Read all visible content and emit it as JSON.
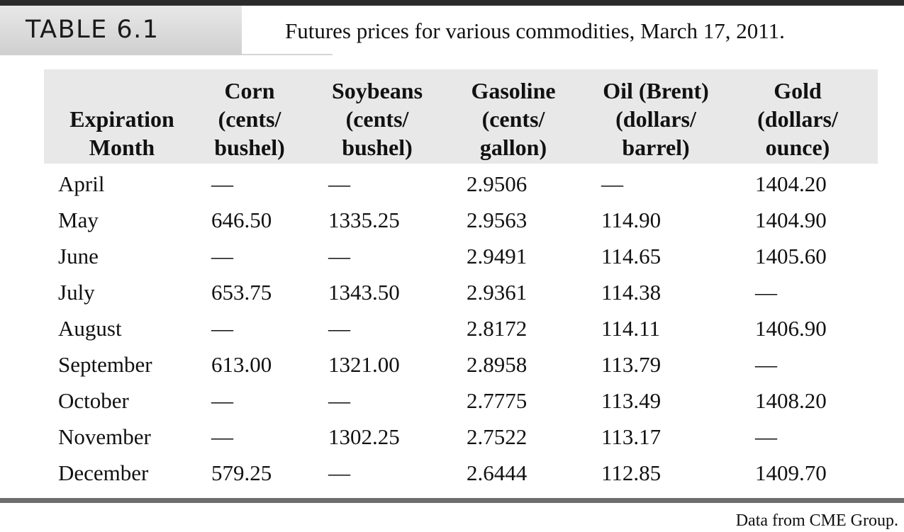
{
  "table": {
    "label": "TABLE 6.1",
    "caption": "Futures prices for various commodities, March 17, 2011.",
    "headers": {
      "month": [
        "Expiration",
        "Month"
      ],
      "corn": [
        "Corn",
        "(cents/",
        "bushel)"
      ],
      "soybeans": [
        "Soybeans",
        "(cents/",
        "bushel)"
      ],
      "gasoline": [
        "Gasoline",
        "(cents/",
        "gallon)"
      ],
      "oil": [
        "Oil (Brent)",
        "(dollars/",
        "barrel)"
      ],
      "gold": [
        "Gold",
        "(dollars/",
        "ounce)"
      ]
    },
    "rows": [
      {
        "month": "April",
        "corn": "—",
        "soybeans": "—",
        "gasoline": "2.9506",
        "oil": "—",
        "gold": "1404.20"
      },
      {
        "month": "May",
        "corn": "646.50",
        "soybeans": "1335.25",
        "gasoline": "2.9563",
        "oil": "114.90",
        "gold": "1404.90"
      },
      {
        "month": "June",
        "corn": "—",
        "soybeans": "—",
        "gasoline": "2.9491",
        "oil": "114.65",
        "gold": "1405.60"
      },
      {
        "month": "July",
        "corn": "653.75",
        "soybeans": "1343.50",
        "gasoline": "2.9361",
        "oil": "114.38",
        "gold": "—"
      },
      {
        "month": "August",
        "corn": "—",
        "soybeans": "—",
        "gasoline": "2.8172",
        "oil": "114.11",
        "gold": "1406.90"
      },
      {
        "month": "September",
        "corn": "613.00",
        "soybeans": "1321.00",
        "gasoline": "2.8958",
        "oil": "113.79",
        "gold": "—"
      },
      {
        "month": "October",
        "corn": "—",
        "soybeans": "—",
        "gasoline": "2.7775",
        "oil": "113.49",
        "gold": "1408.20"
      },
      {
        "month": "November",
        "corn": "—",
        "soybeans": "1302.25",
        "gasoline": "2.7522",
        "oil": "113.17",
        "gold": "—"
      },
      {
        "month": "December",
        "corn": "579.25",
        "soybeans": "—",
        "gasoline": "2.6444",
        "oil": "112.85",
        "gold": "1409.70"
      }
    ],
    "source": "Data from CME Group."
  }
}
